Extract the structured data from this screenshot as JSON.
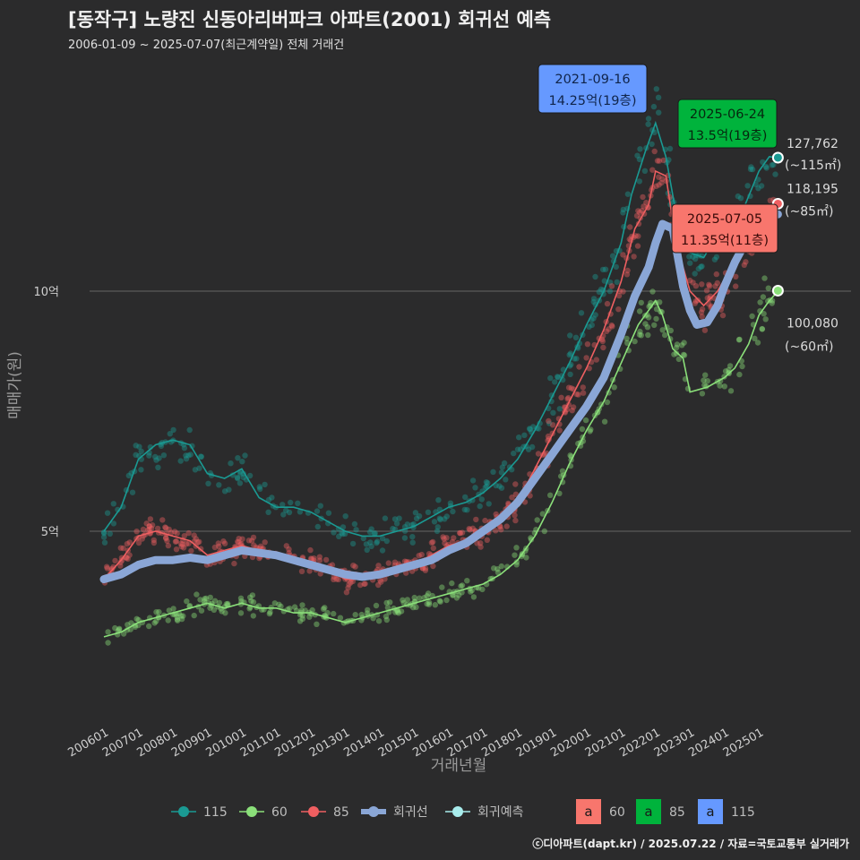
{
  "header": {
    "title": "[동작구] 노량진 신동아리버파크 아파트(2001) 회귀선 예측",
    "subtitle": "2006-01-09 ~ 2025-07-07(최근계약일) 전체 거래건"
  },
  "footer": {
    "credit": "ⓒ디아파트(dapt.kr) / 2025.07.22 / 자료=국토교통부 실거래가"
  },
  "colors": {
    "s115": "#1a9a93",
    "s60": "#8be07a",
    "s85": "#ef5f61",
    "regression": "#8aa6d6",
    "forecast": "#a8ecec",
    "box85": "#00b33c",
    "box115": "#6699ff",
    "box60": "#f8766d"
  },
  "chart_data": {
    "type": "line",
    "title": "[동작구] 노량진 신동아리버파크 아파트(2001) 회귀선 예측",
    "xlabel": "거래년월",
    "ylabel": "매매가(원)",
    "x_range": [
      2006.0,
      2025.8
    ],
    "ylim": [
      1.5,
      15.2
    ],
    "y_unit": "억원",
    "y_ticks": [
      {
        "value": 5,
        "label": "5억"
      },
      {
        "value": 10,
        "label": "10억"
      }
    ],
    "x_ticks": [
      {
        "value": 2006.0,
        "label": "200601"
      },
      {
        "value": 2007.0,
        "label": "200701"
      },
      {
        "value": 2008.0,
        "label": "200801"
      },
      {
        "value": 2009.0,
        "label": "200901"
      },
      {
        "value": 2010.0,
        "label": "201001"
      },
      {
        "value": 2011.0,
        "label": "201101"
      },
      {
        "value": 2012.0,
        "label": "201201"
      },
      {
        "value": 2013.0,
        "label": "201301"
      },
      {
        "value": 2014.0,
        "label": "201401"
      },
      {
        "value": 2015.0,
        "label": "201501"
      },
      {
        "value": 2016.0,
        "label": "201601"
      },
      {
        "value": 2017.0,
        "label": "201701"
      },
      {
        "value": 2018.0,
        "label": "201801"
      },
      {
        "value": 2019.0,
        "label": "201901"
      },
      {
        "value": 2020.0,
        "label": "202001"
      },
      {
        "value": 2021.0,
        "label": "202101"
      },
      {
        "value": 2022.0,
        "label": "202201"
      },
      {
        "value": 2023.0,
        "label": "202301"
      },
      {
        "value": 2024.0,
        "label": "202401"
      },
      {
        "value": 2025.0,
        "label": "202501"
      }
    ],
    "series": [
      {
        "name": "115",
        "key": "s115",
        "x": [
          2006.0,
          2006.5,
          2007.0,
          2007.5,
          2008.0,
          2008.5,
          2009.0,
          2009.5,
          2010.0,
          2010.5,
          2011.0,
          2011.5,
          2012.0,
          2012.5,
          2013.0,
          2013.5,
          2014.0,
          2014.5,
          2015.0,
          2015.5,
          2016.0,
          2016.5,
          2017.0,
          2017.5,
          2018.0,
          2018.5,
          2019.0,
          2019.5,
          2020.0,
          2020.5,
          2021.0,
          2021.3,
          2021.7,
          2022.0,
          2022.3,
          2022.6,
          2023.0,
          2023.4,
          2023.8,
          2024.2,
          2024.6,
          2025.0,
          2025.3,
          2025.55
        ],
        "values": [
          5.0,
          5.5,
          6.5,
          6.8,
          6.9,
          6.8,
          6.2,
          6.1,
          6.3,
          5.7,
          5.5,
          5.5,
          5.4,
          5.2,
          5.0,
          4.9,
          4.9,
          5.0,
          5.1,
          5.3,
          5.5,
          5.6,
          5.8,
          6.1,
          6.5,
          7.1,
          7.8,
          8.5,
          9.3,
          10.0,
          11.0,
          12.0,
          12.9,
          13.5,
          12.8,
          11.6,
          10.8,
          10.7,
          11.2,
          11.4,
          11.8,
          12.5,
          12.8,
          12.78
        ]
      },
      {
        "name": "60",
        "key": "s60",
        "x": [
          2006.0,
          2006.5,
          2007.0,
          2007.5,
          2008.0,
          2008.5,
          2009.0,
          2009.5,
          2010.0,
          2010.5,
          2011.0,
          2011.5,
          2012.0,
          2012.5,
          2013.0,
          2013.5,
          2014.0,
          2014.5,
          2015.0,
          2015.5,
          2016.0,
          2016.5,
          2017.0,
          2017.5,
          2018.0,
          2018.5,
          2019.0,
          2019.5,
          2020.0,
          2020.5,
          2021.0,
          2021.5,
          2022.0,
          2022.2,
          2022.5,
          2022.8,
          2023.0,
          2023.5,
          2024.0,
          2024.3,
          2024.7,
          2025.0,
          2025.3,
          2025.55
        ],
        "values": [
          2.8,
          2.9,
          3.1,
          3.2,
          3.3,
          3.4,
          3.5,
          3.4,
          3.5,
          3.4,
          3.4,
          3.3,
          3.3,
          3.2,
          3.1,
          3.2,
          3.3,
          3.4,
          3.5,
          3.6,
          3.7,
          3.8,
          3.9,
          4.1,
          4.4,
          4.9,
          5.6,
          6.4,
          7.1,
          7.7,
          8.5,
          9.3,
          9.8,
          9.5,
          8.8,
          8.6,
          7.9,
          8.0,
          8.2,
          8.4,
          8.9,
          9.5,
          9.8,
          10.0
        ]
      },
      {
        "name": "85",
        "key": "s85",
        "x": [
          2006.0,
          2006.5,
          2007.0,
          2007.5,
          2008.0,
          2008.5,
          2009.0,
          2009.5,
          2010.0,
          2010.5,
          2011.0,
          2011.5,
          2012.0,
          2012.5,
          2013.0,
          2013.5,
          2014.0,
          2014.5,
          2015.0,
          2015.5,
          2016.0,
          2016.5,
          2017.0,
          2017.5,
          2018.0,
          2018.5,
          2019.0,
          2019.5,
          2020.0,
          2020.5,
          2021.0,
          2021.4,
          2021.8,
          2022.0,
          2022.3,
          2022.6,
          2023.0,
          2023.4,
          2023.8,
          2024.2,
          2024.6,
          2025.0,
          2025.3,
          2025.55
        ],
        "values": [
          4.0,
          4.4,
          4.9,
          5.0,
          4.9,
          4.8,
          4.5,
          4.6,
          4.7,
          4.6,
          4.5,
          4.4,
          4.3,
          4.2,
          4.0,
          4.0,
          4.1,
          4.2,
          4.3,
          4.5,
          4.7,
          4.8,
          5.0,
          5.3,
          5.6,
          6.3,
          7.0,
          7.7,
          8.4,
          9.2,
          10.2,
          11.3,
          11.8,
          12.5,
          12.4,
          11.0,
          10.0,
          9.7,
          10.0,
          10.5,
          11.0,
          11.5,
          11.8,
          11.82
        ]
      },
      {
        "name": "회귀선",
        "key": "regression",
        "x": [
          2006.0,
          2006.5,
          2007.0,
          2007.5,
          2008.0,
          2008.5,
          2009.0,
          2009.5,
          2010.0,
          2010.5,
          2011.0,
          2011.5,
          2012.0,
          2012.5,
          2013.0,
          2013.5,
          2014.0,
          2014.5,
          2015.0,
          2015.5,
          2016.0,
          2016.5,
          2017.0,
          2017.5,
          2018.0,
          2018.5,
          2019.0,
          2019.5,
          2020.0,
          2020.5,
          2021.0,
          2021.4,
          2021.8,
          2022.0,
          2022.2,
          2022.5,
          2022.8,
          2023.0,
          2023.2,
          2023.5,
          2023.8,
          2024.0,
          2024.3,
          2024.6,
          2024.9,
          2025.2,
          2025.55
        ],
        "values": [
          4.0,
          4.1,
          4.3,
          4.4,
          4.4,
          4.45,
          4.4,
          4.5,
          4.6,
          4.55,
          4.5,
          4.4,
          4.3,
          4.2,
          4.1,
          4.05,
          4.1,
          4.2,
          4.3,
          4.4,
          4.6,
          4.75,
          5.0,
          5.25,
          5.6,
          6.1,
          6.6,
          7.1,
          7.6,
          8.2,
          9.1,
          9.9,
          10.5,
          11.0,
          11.4,
          11.3,
          10.1,
          9.6,
          9.3,
          9.35,
          9.7,
          10.1,
          10.6,
          11.0,
          11.3,
          11.6,
          11.6
        ]
      },
      {
        "name": "회귀예측",
        "key": "forecast",
        "x": [
          2025.55,
          2025.55,
          2025.55
        ],
        "values": [
          12.78,
          11.82,
          10.01
        ]
      }
    ],
    "callouts": [
      {
        "date": "2021-09-16",
        "price": "14.25억(19층)",
        "series": "115"
      },
      {
        "date": "2025-06-24",
        "price": "13.5억(19층)",
        "series": "85"
      },
      {
        "date": "2025-07-05",
        "price": "11.35억(11층)",
        "series": "60"
      }
    ],
    "endpoint_labels": [
      {
        "series": "115",
        "value": "127,762",
        "area": "(~115㎡)"
      },
      {
        "series": "85",
        "value": "118,195",
        "area": "(~85㎡)"
      },
      {
        "series": "60",
        "value": "100,080",
        "area": "(~60㎡)"
      }
    ],
    "legend": [
      {
        "label": "115",
        "key": "s115"
      },
      {
        "label": "60",
        "key": "s60"
      },
      {
        "label": "85",
        "key": "s85"
      },
      {
        "label": "회귀선",
        "key": "regression"
      },
      {
        "label": "회귀예측",
        "key": "forecast"
      }
    ],
    "box_legend": [
      {
        "glyph": "a",
        "label": "60",
        "key": "box60"
      },
      {
        "glyph": "a",
        "label": "85",
        "key": "box85"
      },
      {
        "glyph": "a",
        "label": "115",
        "key": "box115"
      }
    ]
  }
}
